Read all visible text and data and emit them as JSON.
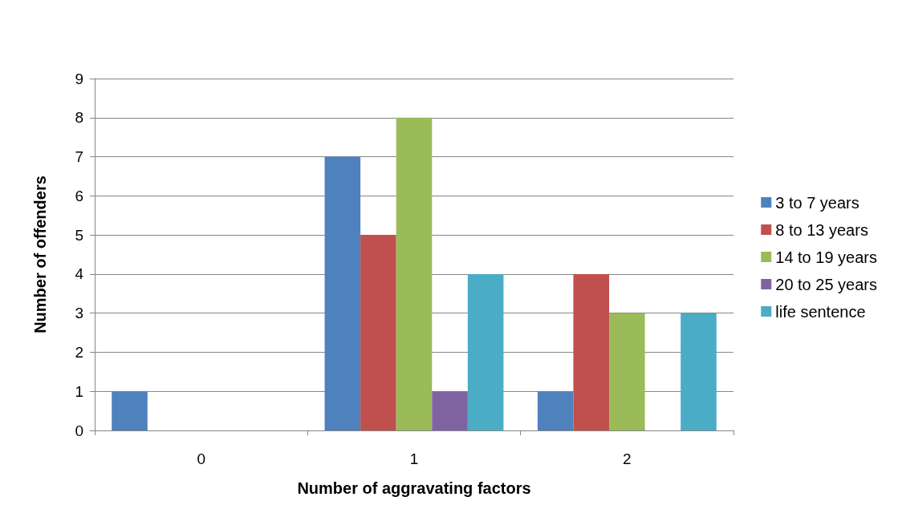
{
  "chart_data": {
    "type": "bar",
    "xlabel": "Number of aggravating factors",
    "ylabel": "Number of offenders",
    "categories": [
      "0",
      "1",
      "2"
    ],
    "series": [
      {
        "name": "3 to 7 years",
        "color": "#4f81bd",
        "values": [
          1,
          7,
          1
        ]
      },
      {
        "name": "8 to 13 years",
        "color": "#c0504d",
        "values": [
          0,
          5,
          4
        ]
      },
      {
        "name": "14 to 19 years",
        "color": "#9bbb59",
        "values": [
          0,
          8,
          3
        ]
      },
      {
        "name": "20 to 25 years",
        "color": "#8064a2",
        "values": [
          0,
          1,
          0
        ]
      },
      {
        "name": "life sentence",
        "color": "#4bacc6",
        "values": [
          0,
          4,
          3
        ]
      }
    ],
    "ylim": [
      0,
      9
    ],
    "yticks": [
      0,
      1,
      2,
      3,
      4,
      5,
      6,
      7,
      8,
      9
    ],
    "grid": "y",
    "legend": "right"
  }
}
